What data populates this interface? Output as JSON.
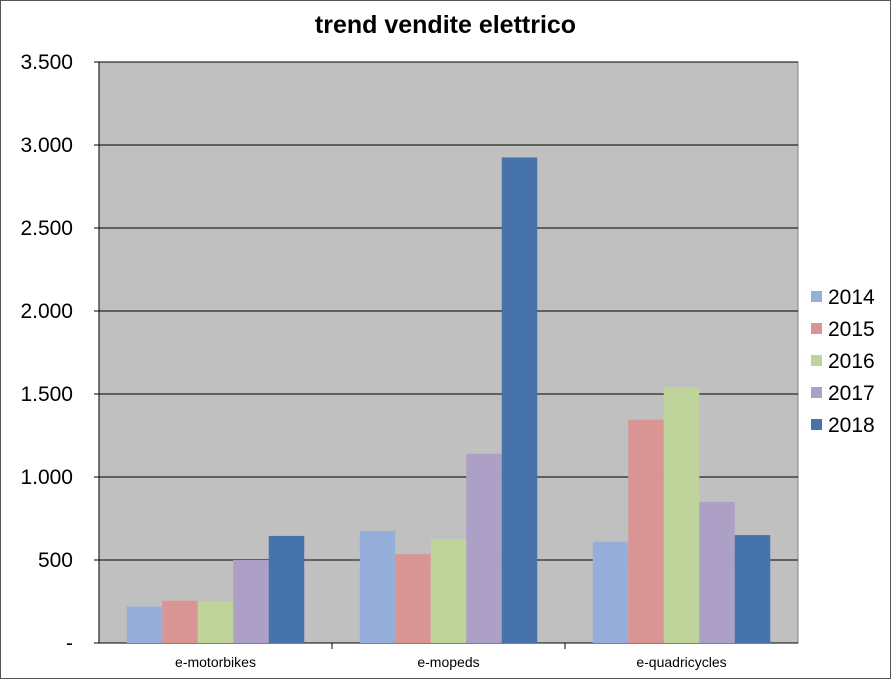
{
  "chart_data": {
    "type": "bar",
    "title": "trend vendite elettrico",
    "xlabel": "",
    "ylabel": "",
    "categories": [
      "e-motorbikes",
      "e-mopeds",
      "e-quadricycles"
    ],
    "series": [
      {
        "name": "2014",
        "color": "#95AEDA",
        "values": [
          220,
          675,
          610
        ]
      },
      {
        "name": "2015",
        "color": "#D99594",
        "values": [
          255,
          535,
          1345
        ]
      },
      {
        "name": "2016",
        "color": "#BFD49B",
        "values": [
          250,
          625,
          1540
        ]
      },
      {
        "name": "2017",
        "color": "#ADA0C6",
        "values": [
          500,
          1140,
          850
        ]
      },
      {
        "name": "2018",
        "color": "#4673AB",
        "values": [
          645,
          2925,
          650
        ]
      }
    ],
    "ylim": [
      0,
      3500
    ],
    "yticks": [
      0,
      500,
      1000,
      1500,
      2000,
      2500,
      3000,
      3500
    ],
    "ytick_labels": [
      "-",
      "500",
      "1.000",
      "1.500",
      "2.000",
      "2.500",
      "3.000",
      "3.500"
    ],
    "grid": true,
    "legend": "right",
    "plot_background": "#C0C0C0"
  }
}
